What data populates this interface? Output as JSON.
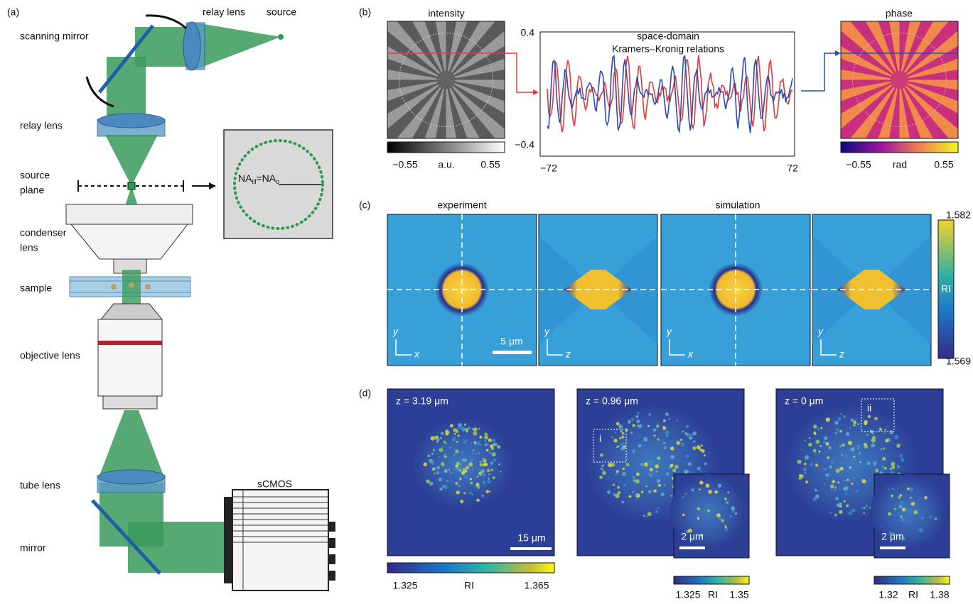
{
  "panel_a": {
    "label": "(a)",
    "relay_lens_top": "relay lens",
    "source": "source",
    "scanning_mirror": "scanning mirror",
    "relay_lens": "relay lens",
    "source_plane": [
      "source",
      "plane"
    ],
    "condenser_lens": [
      "condenser",
      "lens"
    ],
    "sample": "sample",
    "objective_lens": "objective lens",
    "tube_lens": "tube lens",
    "mirror": "mirror",
    "camera": "sCMOS",
    "inset": {
      "na1": "NA",
      "sub1": "ill",
      "na2": "=NA",
      "sub2": "o"
    }
  },
  "panel_b": {
    "label": "(b)",
    "intensity": {
      "title": "intensity",
      "colorbar": [
        "−0.55",
        "a.u.",
        "0.55"
      ]
    },
    "profile": {
      "title": [
        "space-domain",
        "Kramers–Kronig relations"
      ],
      "yticks": [
        "0.4",
        "−0.4"
      ],
      "xticks": [
        "−72",
        "72"
      ]
    },
    "phase": {
      "title": "phase",
      "colorbar": [
        "−0.55",
        "rad",
        "0.55"
      ]
    }
  },
  "panel_c": {
    "label": "(c)",
    "experiment": "experiment",
    "simulation": "simulation",
    "axes": [
      [
        "y",
        "x"
      ],
      [
        "y",
        "z"
      ],
      [
        "y",
        "x"
      ],
      [
        "y",
        "z"
      ]
    ],
    "scale_bar": "5 μm",
    "colorbar": [
      "1.582",
      "RI",
      "1.569"
    ]
  },
  "panel_d": {
    "label": "(d)",
    "images": [
      {
        "depth": "z = 3.19 μm",
        "scale_bar": "15 μm",
        "colorbar": [
          "1.325",
          "RI",
          "1.365"
        ]
      },
      {
        "depth": "z = 0.96 μm",
        "roi": "i",
        "inset_scale_bar": "2 μm",
        "colorbar": [
          "1.325",
          "RI",
          "1.35"
        ]
      },
      {
        "depth": "z = 0 μm",
        "roi": "ii",
        "inset_scale_bar": "2 μm",
        "colorbar": [
          "1.32",
          "RI",
          "1.38"
        ]
      }
    ]
  }
}
